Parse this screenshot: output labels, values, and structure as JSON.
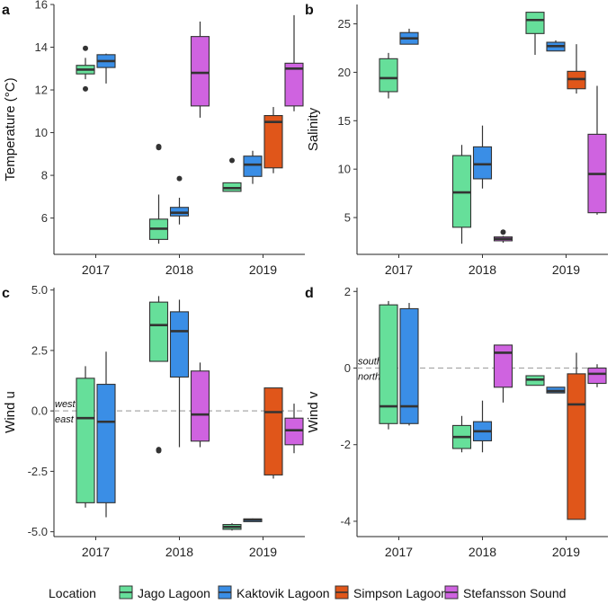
{
  "chart_data": [
    {
      "type": "boxplot",
      "panel_label": "a",
      "ylabel": "Temperature (°C)",
      "ylim": [
        4.3,
        16
      ],
      "yticks": [
        6,
        8,
        10,
        12,
        14,
        16
      ],
      "yticklabels": [
        "6",
        "8",
        "10",
        "12",
        "14",
        "16"
      ],
      "categories": [
        "2017",
        "2018",
        "2019"
      ],
      "boxes": [
        {
          "year": "2017",
          "location": "Jago Lagoon",
          "min": 12.5,
          "q1": 12.75,
          "median": 12.95,
          "q3": 13.15,
          "max": 13.5,
          "outliers": [
            12.05,
            13.95
          ]
        },
        {
          "year": "2017",
          "location": "Kaktovik Lagoon",
          "min": 12.3,
          "q1": 13.05,
          "median": 13.35,
          "q3": 13.65,
          "max": 13.7,
          "outliers": []
        },
        {
          "year": "2018",
          "location": "Jago Lagoon",
          "min": 4.8,
          "q1": 5.0,
          "median": 5.5,
          "q3": 5.95,
          "max": 7.1,
          "outliers": [
            9.3,
            9.35
          ]
        },
        {
          "year": "2018",
          "location": "Kaktovik Lagoon",
          "min": 5.7,
          "q1": 6.1,
          "median": 6.25,
          "q3": 6.5,
          "max": 6.95,
          "outliers": [
            7.85
          ]
        },
        {
          "year": "2018",
          "location": "Stefansson Sound",
          "min": 10.7,
          "q1": 11.25,
          "median": 12.8,
          "q3": 14.5,
          "max": 15.2,
          "outliers": []
        },
        {
          "year": "2019",
          "location": "Jago Lagoon",
          "min": 7.25,
          "q1": 7.25,
          "median": 7.4,
          "q3": 7.65,
          "max": 7.65,
          "outliers": [
            8.7
          ]
        },
        {
          "year": "2019",
          "location": "Kaktovik Lagoon",
          "min": 7.6,
          "q1": 7.95,
          "median": 8.5,
          "q3": 8.9,
          "max": 9.15,
          "outliers": []
        },
        {
          "year": "2019",
          "location": "Simpson Lagoon",
          "min": 8.1,
          "q1": 8.35,
          "median": 10.5,
          "q3": 10.8,
          "max": 11.2,
          "outliers": []
        },
        {
          "year": "2019",
          "location": "Stefansson Sound",
          "min": 11.0,
          "q1": 11.25,
          "median": 13.0,
          "q3": 13.25,
          "max": 15.5,
          "outliers": []
        }
      ]
    },
    {
      "type": "boxplot",
      "panel_label": "b",
      "ylabel": "Salinity",
      "ylim": [
        1.2,
        27
      ],
      "yticks": [
        5,
        10,
        15,
        20,
        25
      ],
      "yticklabels": [
        "5",
        "10",
        "15",
        "20",
        "25"
      ],
      "categories": [
        "2017",
        "2018",
        "2019"
      ],
      "boxes": [
        {
          "year": "2017",
          "location": "Jago Lagoon",
          "min": 17.3,
          "q1": 18.0,
          "median": 19.4,
          "q3": 21.4,
          "max": 22.0,
          "outliers": []
        },
        {
          "year": "2017",
          "location": "Kaktovik Lagoon",
          "min": 22.9,
          "q1": 22.9,
          "median": 23.5,
          "q3": 24.1,
          "max": 24.5,
          "outliers": []
        },
        {
          "year": "2018",
          "location": "Jago Lagoon",
          "min": 2.3,
          "q1": 4.0,
          "median": 7.6,
          "q3": 11.4,
          "max": 12.5,
          "outliers": []
        },
        {
          "year": "2018",
          "location": "Kaktovik Lagoon",
          "min": 8.0,
          "q1": 9.0,
          "median": 10.5,
          "q3": 12.3,
          "max": 14.5,
          "outliers": []
        },
        {
          "year": "2018",
          "location": "Stefansson Sound",
          "min": 2.4,
          "q1": 2.6,
          "median": 2.8,
          "q3": 3.0,
          "max": 3.1,
          "outliers": [
            3.5
          ]
        },
        {
          "year": "2019",
          "location": "Jago Lagoon",
          "min": 21.8,
          "q1": 24.0,
          "median": 25.4,
          "q3": 26.2,
          "max": 26.2,
          "outliers": []
        },
        {
          "year": "2019",
          "location": "Kaktovik Lagoon",
          "min": 22.2,
          "q1": 22.2,
          "median": 22.7,
          "q3": 23.1,
          "max": 23.3,
          "outliers": []
        },
        {
          "year": "2019",
          "location": "Simpson Lagoon",
          "min": 17.8,
          "q1": 18.3,
          "median": 19.3,
          "q3": 20.1,
          "max": 22.9,
          "outliers": []
        },
        {
          "year": "2019",
          "location": "Stefansson Sound",
          "min": 5.3,
          "q1": 5.5,
          "median": 9.5,
          "q3": 13.6,
          "max": 18.6,
          "outliers": []
        }
      ]
    },
    {
      "type": "boxplot",
      "panel_label": "c",
      "ylabel": "Wind u",
      "ylim": [
        -5.2,
        5.1
      ],
      "yticks": [
        -5.0,
        -2.5,
        0.0,
        2.5,
        5.0
      ],
      "yticklabels": [
        "-5.0",
        "-2.5",
        "0.0",
        "2.5",
        "5.0"
      ],
      "categories": [
        "2017",
        "2018",
        "2019"
      ],
      "reference_line": 0,
      "annotation_above": "west",
      "annotation_below": "east",
      "boxes": [
        {
          "year": "2017",
          "location": "Jago Lagoon",
          "min": -4.0,
          "q1": -3.8,
          "median": -0.3,
          "q3": 1.35,
          "max": 1.85,
          "outliers": []
        },
        {
          "year": "2017",
          "location": "Kaktovik Lagoon",
          "min": -4.4,
          "q1": -3.8,
          "median": -0.45,
          "q3": 1.1,
          "max": 2.45,
          "outliers": []
        },
        {
          "year": "2018",
          "location": "Jago Lagoon",
          "min": 2.05,
          "q1": 2.05,
          "median": 3.55,
          "q3": 4.5,
          "max": 4.75,
          "outliers": [
            -1.6,
            -1.65
          ]
        },
        {
          "year": "2018",
          "location": "Kaktovik Lagoon",
          "min": -1.5,
          "q1": 1.4,
          "median": 3.3,
          "q3": 4.1,
          "max": 4.6,
          "outliers": []
        },
        {
          "year": "2018",
          "location": "Stefansson Sound",
          "min": -1.5,
          "q1": -1.25,
          "median": -0.15,
          "q3": 1.65,
          "max": 2.0,
          "outliers": []
        },
        {
          "year": "2019",
          "location": "Jago Lagoon",
          "min": -4.95,
          "q1": -4.9,
          "median": -4.8,
          "q3": -4.7,
          "max": -4.65,
          "outliers": []
        },
        {
          "year": "2019",
          "location": "Kaktovik Lagoon",
          "min": -4.58,
          "q1": -4.55,
          "median": -4.5,
          "q3": -4.47,
          "max": -4.45,
          "outliers": []
        },
        {
          "year": "2019",
          "location": "Simpson Lagoon",
          "min": -2.8,
          "q1": -2.65,
          "median": -0.05,
          "q3": 0.95,
          "max": 0.95,
          "outliers": []
        },
        {
          "year": "2019",
          "location": "Stefansson Sound",
          "min": -1.75,
          "q1": -1.4,
          "median": -0.8,
          "q3": -0.3,
          "max": 0.3,
          "outliers": []
        }
      ]
    },
    {
      "type": "boxplot",
      "panel_label": "d",
      "ylabel": "Wind v",
      "ylim": [
        -4.4,
        2.1
      ],
      "yticks": [
        -4,
        -2,
        0,
        2
      ],
      "yticklabels": [
        "-4",
        "-2",
        "0",
        "2"
      ],
      "categories": [
        "2017",
        "2018",
        "2019"
      ],
      "reference_line": 0,
      "annotation_above": "south",
      "annotation_below": "north",
      "boxes": [
        {
          "year": "2017",
          "location": "Jago Lagoon",
          "min": -1.6,
          "q1": -1.45,
          "median": -1.0,
          "q3": 1.65,
          "max": 1.75,
          "outliers": []
        },
        {
          "year": "2017",
          "location": "Kaktovik Lagoon",
          "min": -1.5,
          "q1": -1.45,
          "median": -1.0,
          "q3": 1.55,
          "max": 1.7,
          "outliers": []
        },
        {
          "year": "2018",
          "location": "Jago Lagoon",
          "min": -2.2,
          "q1": -2.1,
          "median": -1.8,
          "q3": -1.5,
          "max": -1.25,
          "outliers": []
        },
        {
          "year": "2018",
          "location": "Kaktovik Lagoon",
          "min": -2.2,
          "q1": -1.9,
          "median": -1.65,
          "q3": -1.4,
          "max": -0.85,
          "outliers": []
        },
        {
          "year": "2018",
          "location": "Stefansson Sound",
          "min": -0.9,
          "q1": -0.5,
          "median": 0.4,
          "q3": 0.6,
          "max": 0.6,
          "outliers": []
        },
        {
          "year": "2019",
          "location": "Jago Lagoon",
          "min": -0.45,
          "q1": -0.45,
          "median": -0.3,
          "q3": -0.2,
          "max": -0.2,
          "outliers": []
        },
        {
          "year": "2019",
          "location": "Kaktovik Lagoon",
          "min": -0.65,
          "q1": -0.65,
          "median": -0.6,
          "q3": -0.5,
          "max": -0.5,
          "outliers": []
        },
        {
          "year": "2019",
          "location": "Simpson Lagoon",
          "min": -3.95,
          "q1": -3.95,
          "median": -0.95,
          "q3": -0.15,
          "max": 0.4,
          "outliers": []
        },
        {
          "year": "2019",
          "location": "Stefansson Sound",
          "min": -0.5,
          "q1": -0.4,
          "median": -0.15,
          "q3": 0.0,
          "max": 0.1,
          "outliers": []
        }
      ]
    }
  ],
  "legend": {
    "title": "Location",
    "placement": "bottom",
    "entries": [
      {
        "name": "Jago Lagoon",
        "color": "#66df9a"
      },
      {
        "name": "Kaktovik Lagoon",
        "color": "#3a8ee6"
      },
      {
        "name": "Simpson Lagoon",
        "color": "#e0561a"
      },
      {
        "name": "Stefansson Sound",
        "color": "#cf63e0"
      }
    ]
  }
}
